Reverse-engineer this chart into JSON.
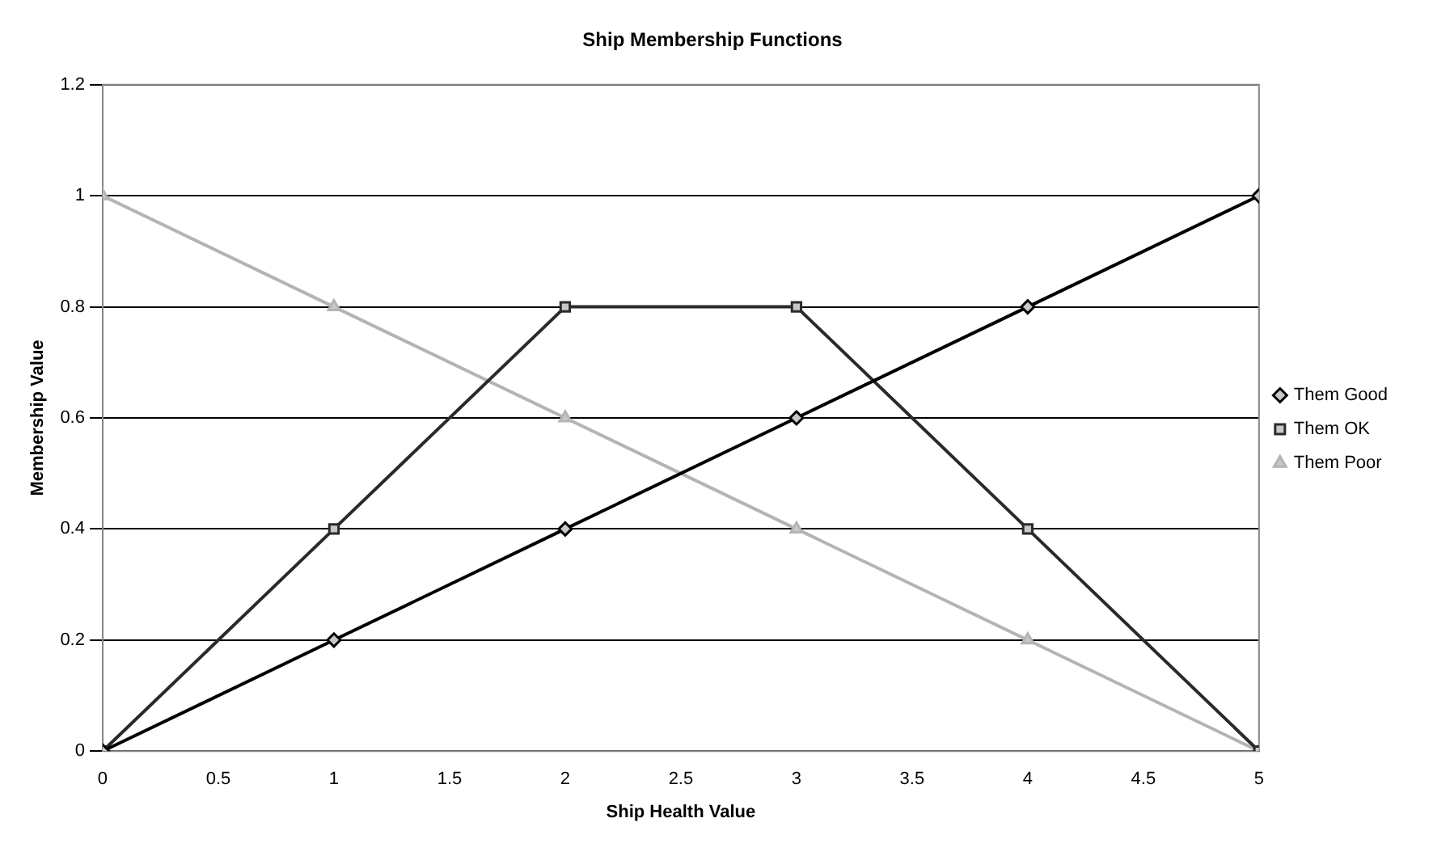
{
  "chart_data": {
    "type": "line",
    "title": "Ship Membership Functions",
    "xlabel": "Ship Health Value",
    "ylabel": "Membership Value",
    "x": [
      0,
      1,
      2,
      3,
      4,
      5
    ],
    "series": [
      {
        "name": "Them Good",
        "color": "#000000",
        "marker": "diamond",
        "values": [
          0,
          0.2,
          0.4,
          0.6,
          0.8,
          1
        ]
      },
      {
        "name": "Them OK",
        "color": "#2a2a2a",
        "marker": "square",
        "values": [
          0,
          0.4,
          0.8,
          0.8,
          0.4,
          0
        ]
      },
      {
        "name": "Them Poor",
        "color": "#b4b4b4",
        "marker": "triangle",
        "values": [
          1,
          0.8,
          0.6,
          0.4,
          0.2,
          0
        ]
      }
    ],
    "xlim": [
      0,
      5
    ],
    "xticks": [
      0,
      0.5,
      1,
      1.5,
      2,
      2.5,
      3,
      3.5,
      4,
      4.5,
      5
    ],
    "ylim": [
      0,
      1.2
    ],
    "yticks": [
      0,
      0.2,
      0.4,
      0.6,
      0.8,
      1,
      1.2
    ],
    "grid": "y",
    "legend": "right",
    "line_style": "solid"
  }
}
